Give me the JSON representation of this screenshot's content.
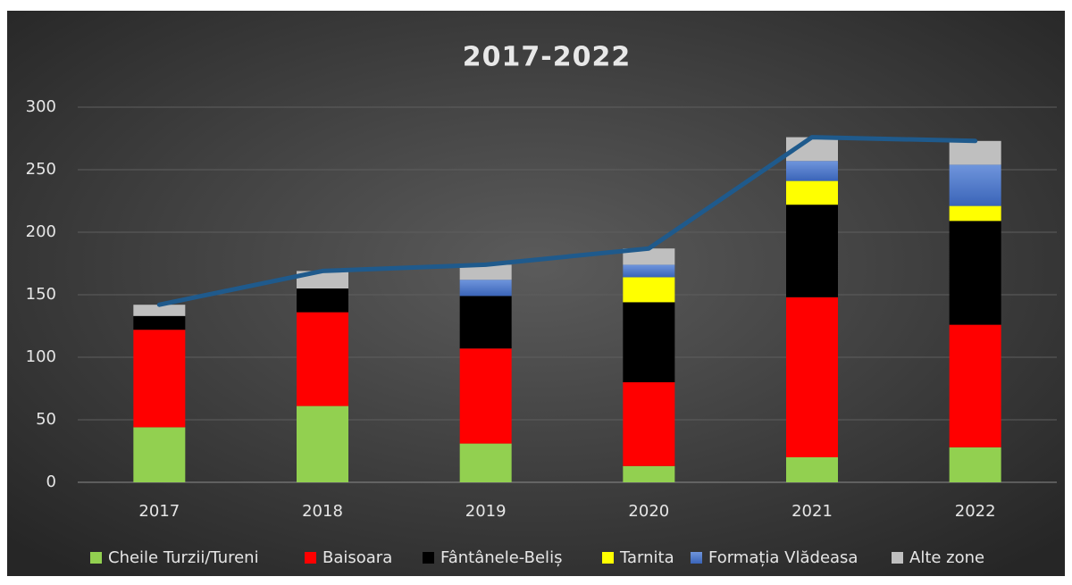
{
  "chart_data": {
    "type": "bar",
    "stacked": true,
    "title": "2017-2022",
    "categories": [
      "2017",
      "2018",
      "2019",
      "2020",
      "2021",
      "2022"
    ],
    "series": [
      {
        "name": "Cheile Turzii/Tureni",
        "color": "#92d050",
        "values": [
          44,
          61,
          31,
          13,
          20,
          28
        ]
      },
      {
        "name": "Baisoara",
        "color": "#ff0000",
        "values": [
          78,
          75,
          76,
          67,
          128,
          98
        ]
      },
      {
        "name": "Fântânele-Beliș",
        "color": "#000000",
        "values": [
          11,
          19,
          42,
          64,
          74,
          83
        ]
      },
      {
        "name": "Tarnita",
        "color": "#ffff00",
        "values": [
          0,
          0,
          0,
          20,
          19,
          12
        ]
      },
      {
        "name": "Formația Vlădeasa",
        "color": "#4472c4",
        "values": [
          0,
          0,
          13,
          10,
          16,
          33
        ]
      },
      {
        "name": "Alte zone",
        "color": "#bfbfbf",
        "values": [
          9,
          14,
          12,
          13,
          19,
          19
        ]
      }
    ],
    "line": {
      "color": "#1f5a8c",
      "values": [
        142,
        169,
        174,
        187,
        276,
        273
      ]
    },
    "ylim": [
      0,
      300
    ],
    "yticks": [
      0,
      50,
      100,
      150,
      200,
      250,
      300
    ],
    "grid": true,
    "legend": "bottom"
  }
}
